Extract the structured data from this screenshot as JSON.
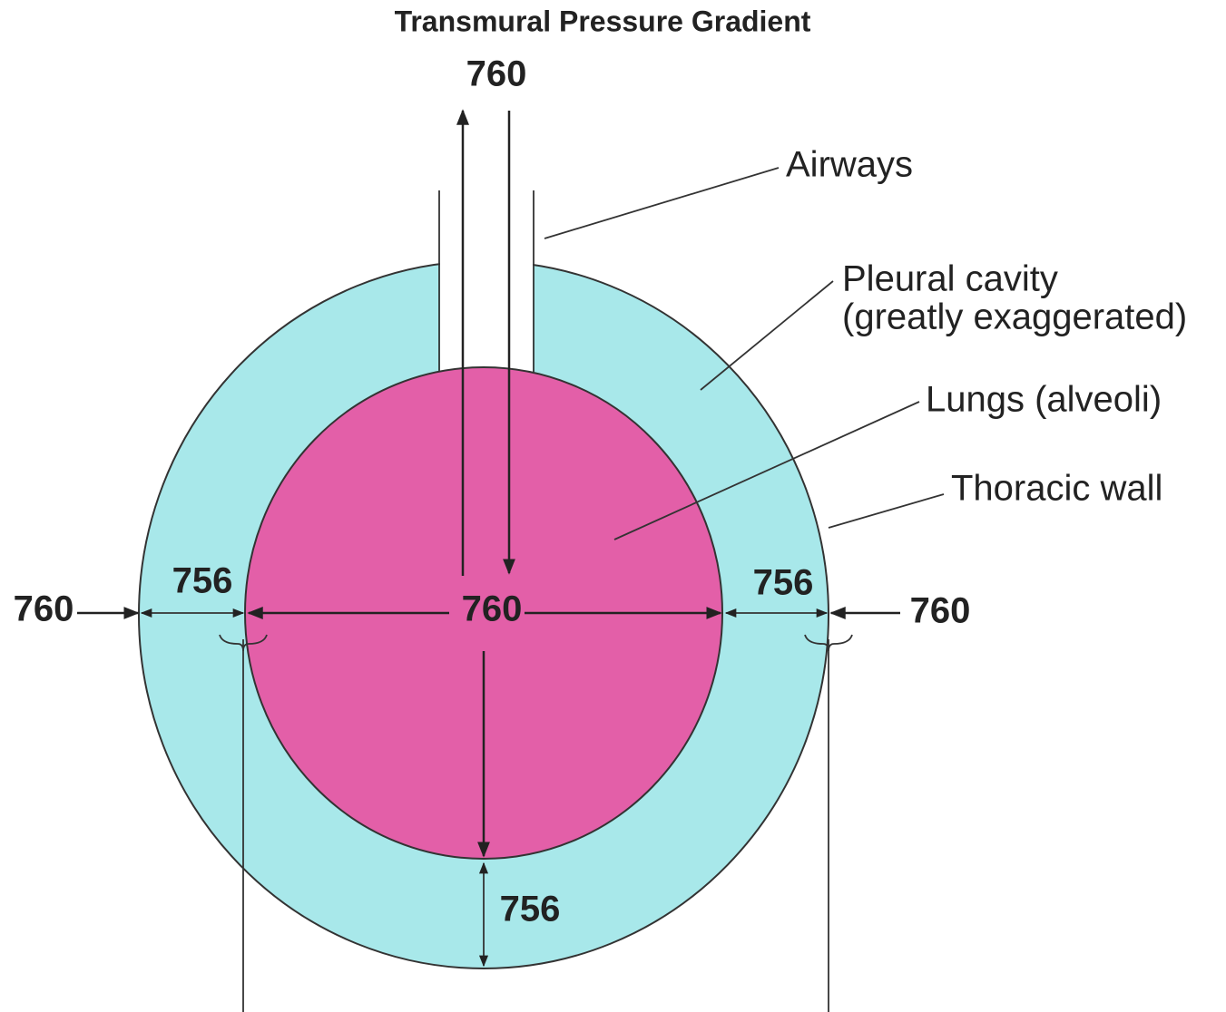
{
  "title": "Transmural Pressure Gradient",
  "labels": {
    "airways": "Airways",
    "pleural_cavity": [
      "Pleural cavity",
      "(greatly exaggerated)"
    ],
    "lungs": "Lungs (alveoli)",
    "thoracic_wall": "Thoracic wall"
  },
  "pressures": {
    "airway_top": 760,
    "outside_left": 760,
    "pleural_left": 756,
    "alveolar": 760,
    "pleural_right": 756,
    "outside_right": 760,
    "pleural_bottom": 756
  }
}
